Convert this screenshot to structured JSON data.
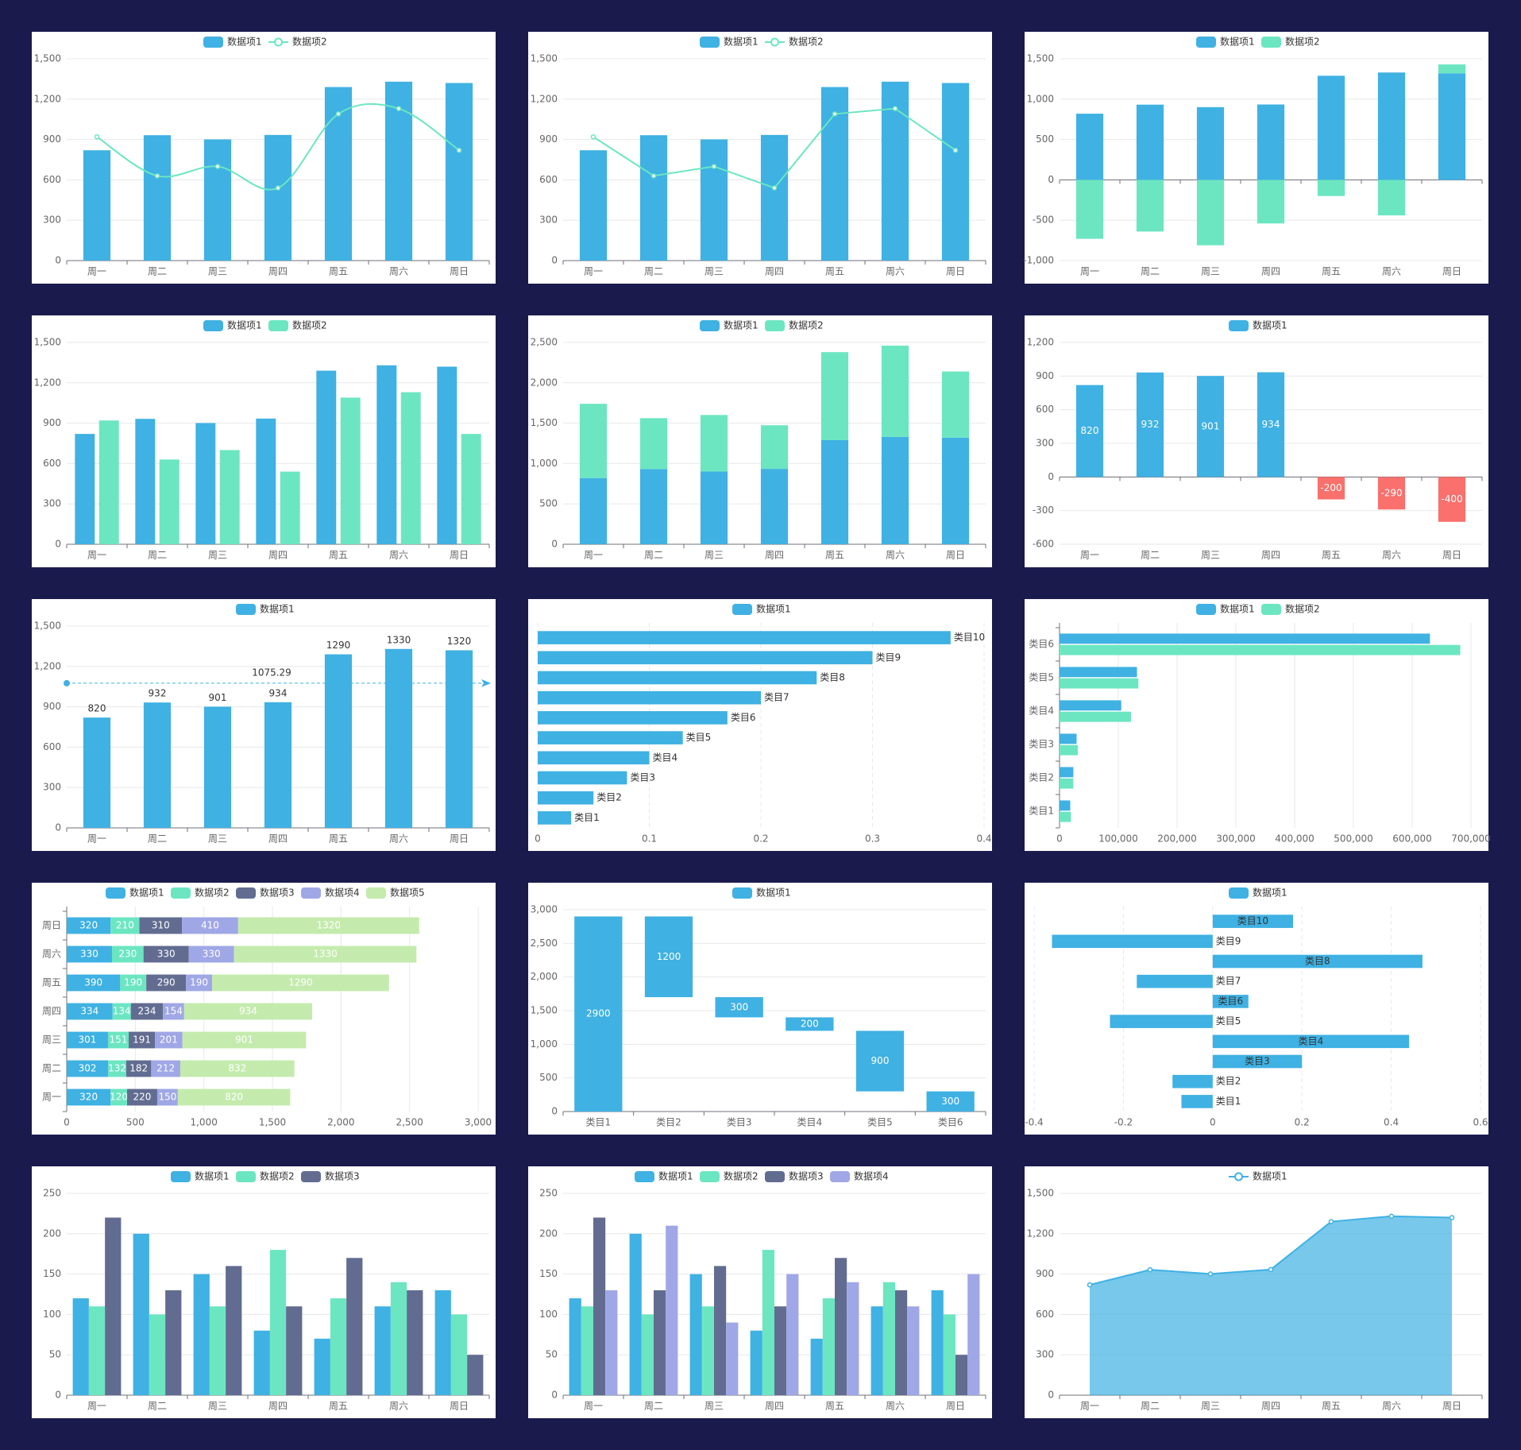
{
  "chart_data": [
    {
      "type": "bar",
      "legend": "top",
      "grid": true,
      "categories": [
        "周一",
        "周二",
        "周三",
        "周四",
        "周五",
        "周六",
        "周日"
      ],
      "series": [
        {
          "name": "数据项1",
          "color": "#3fb1e3",
          "values": [
            820,
            932,
            901,
            934,
            1290,
            1330,
            1320
          ]
        },
        {
          "name": "数据项2",
          "type": "line",
          "smooth": true,
          "color": "#6be6c1",
          "values": [
            920,
            630,
            700,
            540,
            1090,
            1130,
            820
          ]
        }
      ],
      "ylim": [
        0,
        1500
      ],
      "yticks": [
        0,
        300,
        600,
        900,
        {
          "value": 1200,
          "label": "1,200"
        },
        {
          "value": 1500,
          "label": "1,500"
        }
      ]
    },
    {
      "type": "bar",
      "legend": "top",
      "grid": true,
      "categories": [
        "周一",
        "周二",
        "周三",
        "周四",
        "周五",
        "周六",
        "周日"
      ],
      "series": [
        {
          "name": "数据项1",
          "color": "#3fb1e3",
          "values": [
            820,
            932,
            901,
            934,
            1290,
            1330,
            1320
          ]
        },
        {
          "name": "数据项2",
          "type": "line",
          "smooth": false,
          "color": "#6be6c1",
          "values": [
            920,
            630,
            700,
            540,
            1090,
            1130,
            820
          ]
        }
      ],
      "ylim": [
        0,
        1500
      ],
      "yticks": [
        0,
        300,
        600,
        900,
        {
          "value": 1200,
          "label": "1,200"
        },
        {
          "value": 1500,
          "label": "1,500"
        }
      ]
    },
    {
      "type": "bar",
      "legend": "top",
      "grid": true,
      "stacked": true,
      "categories": [
        "周一",
        "周二",
        "周三",
        "周四",
        "周五",
        "周六",
        "周日"
      ],
      "series": [
        {
          "name": "数据项1",
          "color": "#3fb1e3",
          "values": [
            820,
            932,
            901,
            934,
            1290,
            1330,
            1320
          ]
        },
        {
          "name": "数据项2",
          "color": "#6be6c1",
          "values": [
            -730,
            -640,
            -810,
            -540,
            -200,
            -440,
            110
          ]
        }
      ],
      "ylim": [
        -1000,
        1500
      ],
      "yticks": [
        {
          "value": -1000,
          "label": "-1,000"
        },
        -500,
        0,
        500,
        {
          "value": 1000,
          "label": "1,000"
        },
        {
          "value": 1500,
          "label": "1,500"
        }
      ]
    },
    {
      "type": "bar",
      "legend": "top",
      "grid": true,
      "categories": [
        "周一",
        "周二",
        "周三",
        "周四",
        "周五",
        "周六",
        "周日"
      ],
      "series": [
        {
          "name": "数据项1",
          "color": "#3fb1e3",
          "values": [
            820,
            932,
            901,
            934,
            1290,
            1330,
            1320
          ]
        },
        {
          "name": "数据项2",
          "color": "#6be6c1",
          "values": [
            920,
            630,
            700,
            540,
            1090,
            1130,
            820
          ]
        }
      ],
      "ylim": [
        0,
        1500
      ],
      "yticks": [
        0,
        300,
        600,
        900,
        {
          "value": 1200,
          "label": "1,200"
        },
        {
          "value": 1500,
          "label": "1,500"
        }
      ]
    },
    {
      "type": "bar",
      "legend": "top",
      "grid": true,
      "stacked": true,
      "categories": [
        "周一",
        "周二",
        "周三",
        "周四",
        "周五",
        "周六",
        "周日"
      ],
      "series": [
        {
          "name": "数据项1",
          "color": "#3fb1e3",
          "values": [
            820,
            932,
            901,
            934,
            1290,
            1330,
            1320
          ]
        },
        {
          "name": "数据项2",
          "color": "#6be6c1",
          "values": [
            920,
            630,
            700,
            540,
            1090,
            1130,
            820
          ]
        }
      ],
      "ylim": [
        0,
        2500
      ],
      "yticks": [
        0,
        500,
        {
          "value": 1000,
          "label": "1,000"
        },
        {
          "value": 1500,
          "label": "1,500"
        },
        {
          "value": 2000,
          "label": "2,000"
        },
        {
          "value": 2500,
          "label": "2,500"
        }
      ]
    },
    {
      "type": "bar",
      "legend": "top",
      "grid": true,
      "labels": "inside",
      "categories": [
        "周一",
        "周二",
        "周三",
        "周四",
        "周五",
        "周六",
        "周日"
      ],
      "series": [
        {
          "name": "数据项1",
          "color": "#3fb1e3",
          "negative_color": "#f9706c",
          "values": [
            820,
            932,
            901,
            934,
            -200,
            -290,
            -400
          ]
        }
      ],
      "ylim": [
        -600,
        1200
      ],
      "yticks": [
        -600,
        -300,
        0,
        300,
        600,
        900,
        {
          "value": 1200,
          "label": "1,200"
        }
      ]
    },
    {
      "type": "bar",
      "legend": "top",
      "grid": true,
      "labels": "top",
      "categories": [
        "周一",
        "周二",
        "周三",
        "周四",
        "周五",
        "周六",
        "周日"
      ],
      "series": [
        {
          "name": "数据项1",
          "color": "#3fb1e3",
          "values": [
            820,
            932,
            901,
            934,
            1290,
            1330,
            1320
          ]
        }
      ],
      "mark_line": {
        "value": 1075.29
      },
      "ylim": [
        0,
        1500
      ],
      "yticks": [
        0,
        300,
        600,
        900,
        {
          "value": 1200,
          "label": "1,200"
        },
        {
          "value": 1500,
          "label": "1,500"
        }
      ]
    },
    {
      "type": "horizontal-bar",
      "legend": "top",
      "grid": true,
      "grid_style": "dashed",
      "category_labels": "end",
      "categories": [
        "类目1",
        "类目2",
        "类目3",
        "类目4",
        "类目5",
        "类目6",
        "类目7",
        "类目8",
        "类目9",
        "类目10"
      ],
      "series": [
        {
          "name": "数据项1",
          "color": "#3fb1e3",
          "values": [
            0.03,
            0.05,
            0.08,
            0.1,
            0.13,
            0.17,
            0.2,
            0.25,
            0.3,
            0.37
          ]
        }
      ],
      "xlim": [
        0,
        0.4
      ],
      "xticks": [
        0,
        0.1,
        0.2,
        0.3,
        0.4
      ]
    },
    {
      "type": "horizontal-bar",
      "legend": "top",
      "grid": true,
      "categories": [
        "类目1",
        "类目2",
        "类目3",
        "类目4",
        "类目5",
        "类目6"
      ],
      "series": [
        {
          "name": "数据项1",
          "color": "#3fb1e3",
          "values": [
            18203,
            23489,
            29034,
            104970,
            131744,
            630230
          ]
        },
        {
          "name": "数据项2",
          "color": "#6be6c1",
          "values": [
            19325,
            23438,
            31000,
            121594,
            134141,
            681807
          ]
        }
      ],
      "xlim": [
        0,
        700000
      ],
      "xticks": [
        0,
        {
          "value": 100000,
          "label": "100,000"
        },
        {
          "value": 200000,
          "label": "200,000"
        },
        {
          "value": 300000,
          "label": "300,000"
        },
        {
          "value": 400000,
          "label": "400,000"
        },
        {
          "value": 500000,
          "label": "500,000"
        },
        {
          "value": 600000,
          "label": "600,000"
        },
        {
          "value": 700000,
          "label": "700,000"
        }
      ]
    },
    {
      "type": "horizontal-bar",
      "legend": "top",
      "grid": true,
      "stacked": true,
      "labels": "inside",
      "categories": [
        "周一",
        "周二",
        "周三",
        "周四",
        "周五",
        "周六",
        "周日"
      ],
      "series": [
        {
          "name": "数据项1",
          "color": "#3fb1e3",
          "values": [
            320,
            302,
            301,
            334,
            390,
            330,
            320
          ]
        },
        {
          "name": "数据项2",
          "color": "#6be6c1",
          "values": [
            120,
            132,
            151,
            134,
            190,
            230,
            210
          ]
        },
        {
          "name": "数据项3",
          "color": "#626c91",
          "values": [
            220,
            182,
            191,
            234,
            290,
            330,
            310
          ]
        },
        {
          "name": "数据项4",
          "color": "#a0a7e6",
          "values": [
            150,
            212,
            201,
            154,
            190,
            330,
            410
          ]
        },
        {
          "name": "数据项5",
          "color": "#c4ebad",
          "values": [
            820,
            832,
            901,
            934,
            1290,
            1330,
            1320
          ]
        }
      ],
      "xlim": [
        0,
        3000
      ],
      "xticks": [
        0,
        500,
        {
          "value": 1000,
          "label": "1,000"
        },
        {
          "value": 1500,
          "label": "1,500"
        },
        {
          "value": 2000,
          "label": "2,000"
        },
        {
          "value": 2500,
          "label": "2,500"
        },
        {
          "value": 3000,
          "label": "3,000"
        }
      ]
    },
    {
      "type": "waterfall",
      "legend": "top",
      "grid": true,
      "labels": "inside",
      "categories": [
        "类目1",
        "类目2",
        "类目3",
        "类目4",
        "类目5",
        "类目6"
      ],
      "series": [
        {
          "name": "数据项1",
          "color": "#3fb1e3",
          "values": [
            2900,
            1200,
            300,
            200,
            900,
            300
          ]
        }
      ],
      "ylim": [
        0,
        3000
      ],
      "yticks": [
        0,
        500,
        {
          "value": 1000,
          "label": "1,000"
        },
        {
          "value": 1500,
          "label": "1,500"
        },
        {
          "value": 2000,
          "label": "2,000"
        },
        {
          "value": 2500,
          "label": "2,500"
        },
        {
          "value": 3000,
          "label": "3,000"
        }
      ]
    },
    {
      "type": "horizontal-bar",
      "legend": "top",
      "grid": true,
      "grid_style": "dashed",
      "category_labels": "inside",
      "categories": [
        "类目1",
        "类目2",
        "类目3",
        "类目4",
        "类目5",
        "类目6",
        "类目7",
        "类目8",
        "类目9",
        "类目10"
      ],
      "series": [
        {
          "name": "数据项1",
          "color": "#3fb1e3",
          "values": [
            -0.07,
            -0.09,
            0.2,
            0.44,
            -0.23,
            0.08,
            -0.17,
            0.47,
            -0.36,
            0.18
          ]
        }
      ],
      "xlim": [
        -0.4,
        0.6
      ],
      "xticks": [
        -0.4,
        -0.2,
        0,
        0.2,
        0.4,
        0.6
      ]
    },
    {
      "type": "bar",
      "legend": "top",
      "grid": true,
      "categories": [
        "周一",
        "周二",
        "周三",
        "周四",
        "周五",
        "周六",
        "周日"
      ],
      "series": [
        {
          "name": "数据项1",
          "color": "#3fb1e3",
          "values": [
            120,
            200,
            150,
            80,
            70,
            110,
            130
          ]
        },
        {
          "name": "数据项2",
          "color": "#6be6c1",
          "values": [
            110,
            100,
            110,
            180,
            120,
            140,
            100
          ]
        },
        {
          "name": "数据项3",
          "color": "#626c91",
          "values": [
            220,
            130,
            160,
            110,
            170,
            130,
            50
          ]
        }
      ],
      "ylim": [
        0,
        250
      ],
      "yticks": [
        0,
        50,
        100,
        150,
        200,
        250
      ]
    },
    {
      "type": "bar",
      "legend": "top",
      "grid": true,
      "categories": [
        "周一",
        "周二",
        "周三",
        "周四",
        "周五",
        "周六",
        "周日"
      ],
      "series": [
        {
          "name": "数据项1",
          "color": "#3fb1e3",
          "values": [
            120,
            200,
            150,
            80,
            70,
            110,
            130
          ]
        },
        {
          "name": "数据项2",
          "color": "#6be6c1",
          "values": [
            110,
            100,
            110,
            180,
            120,
            140,
            100
          ]
        },
        {
          "name": "数据项3",
          "color": "#626c91",
          "values": [
            220,
            130,
            160,
            110,
            170,
            130,
            50
          ]
        },
        {
          "name": "数据项4",
          "color": "#a0a7e6",
          "values": [
            130,
            210,
            90,
            150,
            140,
            110,
            150
          ]
        }
      ],
      "ylim": [
        0,
        250
      ],
      "yticks": [
        0,
        50,
        100,
        150,
        200,
        250
      ]
    },
    {
      "type": "line",
      "legend": "top",
      "grid": true,
      "categories": [
        "周一",
        "周二",
        "周三",
        "周四",
        "周五",
        "周六",
        "周日"
      ],
      "series": [
        {
          "name": "数据项1",
          "color": "#3fb1e3",
          "area": true,
          "values": [
            820,
            932,
            901,
            934,
            1290,
            1330,
            1320
          ]
        }
      ],
      "ylim": [
        0,
        1500
      ],
      "yticks": [
        0,
        300,
        600,
        900,
        {
          "value": 1200,
          "label": "1,200"
        },
        {
          "value": 1500,
          "label": "1,500"
        }
      ]
    }
  ]
}
